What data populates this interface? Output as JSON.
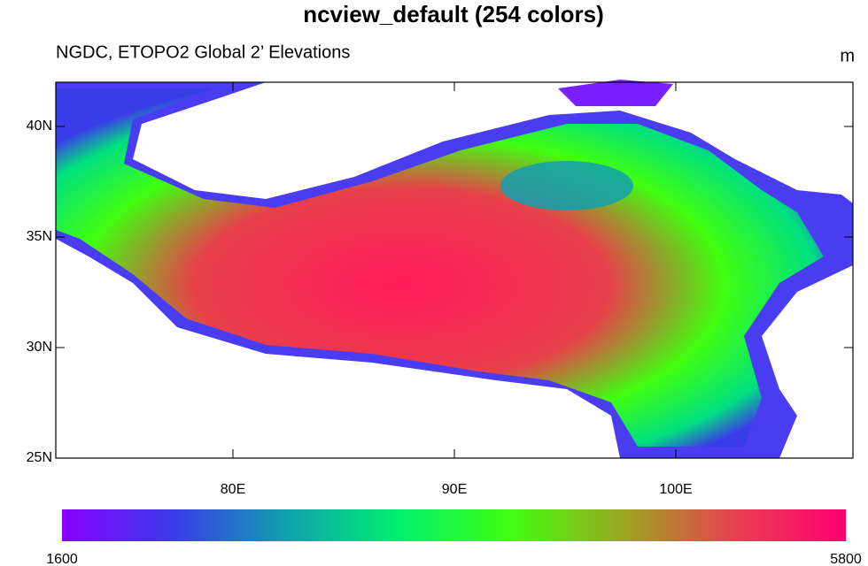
{
  "chart_data": {
    "type": "raster-map",
    "title": "ncview_default (254 colors)",
    "subtitle": "NGDC, ETOPO2 Global 2’ Elevations",
    "units": "m",
    "xlim": [
      72,
      108
    ],
    "ylim": [
      25,
      42
    ],
    "xticks": [
      {
        "value": 80,
        "label": "80E"
      },
      {
        "value": 90,
        "label": "90E"
      },
      {
        "value": 100,
        "label": "100E"
      }
    ],
    "yticks": [
      {
        "value": 25,
        "label": "25N"
      },
      {
        "value": 30,
        "label": "30N"
      },
      {
        "value": 35,
        "label": "35N"
      },
      {
        "value": 40,
        "label": "40N"
      }
    ],
    "clim": [
      1600,
      5800
    ],
    "colorbar_ticks": [
      1600,
      5800
    ],
    "colors": [
      "#8a00ff",
      "#3a3ce8",
      "#10a0b0",
      "#00f070",
      "#40ff10",
      "#9aa820",
      "#e84050",
      "#ff0070"
    ]
  }
}
